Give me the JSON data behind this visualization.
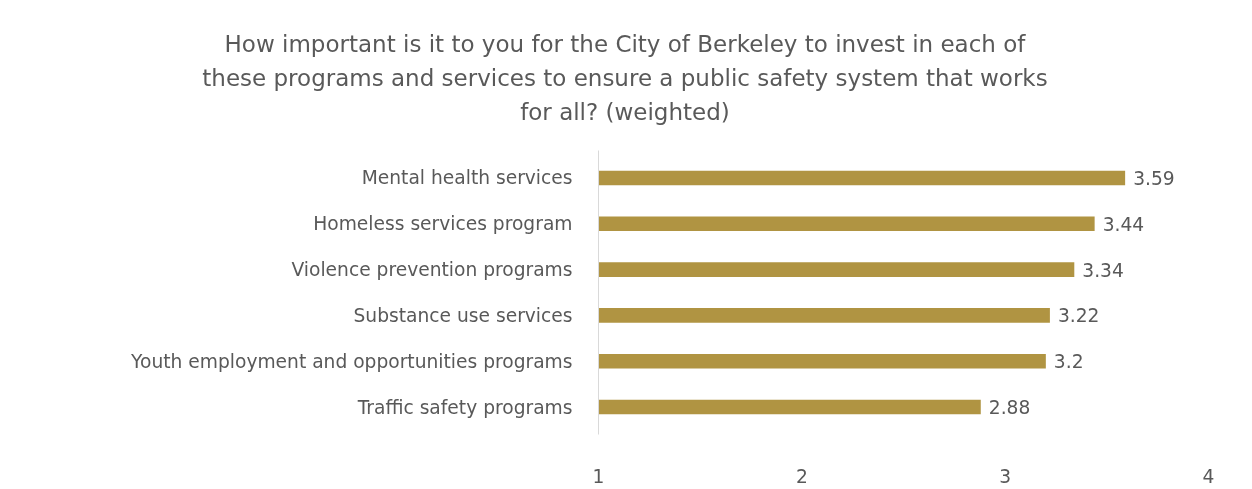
{
  "chart_data": {
    "type": "bar",
    "orientation": "horizontal",
    "title": "How important is it to you for the City of Berkeley to invest in each of these programs and services to ensure a public safety system that works for all? (weighted)",
    "categories": [
      "Mental health services",
      "Homeless services program",
      "Violence prevention programs",
      "Substance use services",
      "Youth employment and opportunities programs",
      "Traffic safety programs"
    ],
    "values": [
      3.59,
      3.44,
      3.34,
      3.22,
      3.2,
      2.88
    ],
    "color": "#b09442",
    "xlim": [
      1,
      4
    ],
    "xticks": [
      1,
      2,
      3,
      4
    ],
    "data_labels": true,
    "grid": false
  }
}
